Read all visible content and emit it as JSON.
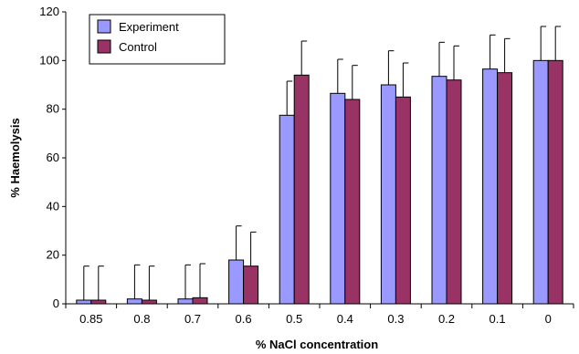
{
  "chart_data": {
    "type": "bar",
    "xlabel": "% NaCl concentration",
    "ylabel": "% Haemolysis",
    "ylim": [
      0,
      120
    ],
    "yticks": [
      0,
      20,
      40,
      60,
      80,
      100,
      120
    ],
    "categories": [
      "0.85",
      "0.8",
      "0.7",
      "0.6",
      "0.5",
      "0.4",
      "0.3",
      "0.2",
      "0.1",
      "0"
    ],
    "series": [
      {
        "name": "Experiment",
        "color": "#9999ff",
        "values": [
          1.5,
          2,
          2,
          18,
          77.5,
          86.5,
          90,
          93.5,
          96.5,
          100
        ],
        "errors": [
          14,
          14,
          14,
          14,
          14,
          14,
          14,
          14,
          14,
          14
        ]
      },
      {
        "name": "Control",
        "color": "#993366",
        "values": [
          1.5,
          1.5,
          2.5,
          15.5,
          94,
          84,
          85,
          92,
          95,
          100
        ],
        "errors": [
          14,
          14,
          14,
          14,
          14,
          14,
          14,
          14,
          14,
          14
        ]
      }
    ],
    "legend": "top-left",
    "grid": false
  }
}
